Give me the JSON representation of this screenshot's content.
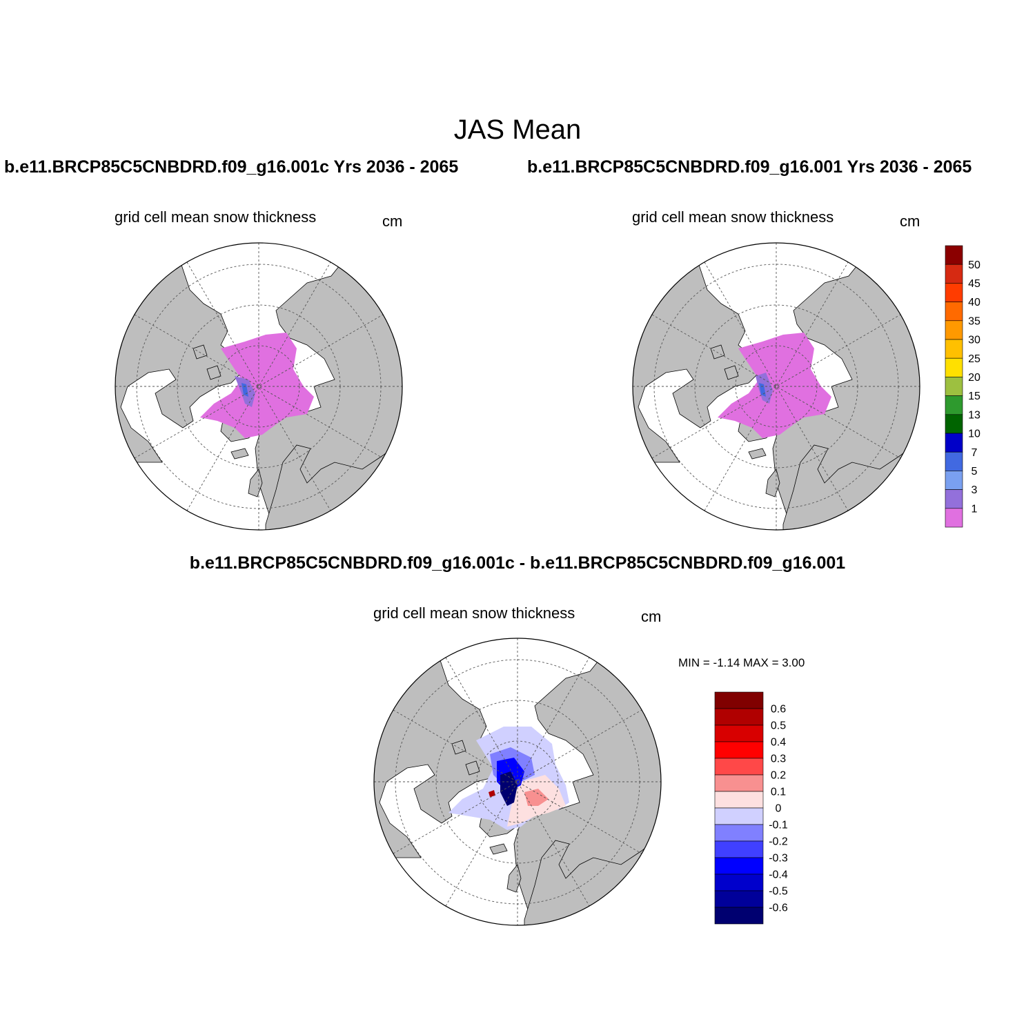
{
  "title": "JAS Mean",
  "panels": [
    {
      "case_title": "b.e11.BRCP85C5CNBDRD.f09_g16.001c  Yrs 2036 - 2065",
      "variable": "grid cell mean snow thickness",
      "units": "cm"
    },
    {
      "case_title": "b.e11.BRCP85C5CNBDRD.f09_g16.001  Yrs 2036 - 2065",
      "variable": "grid cell mean snow thickness",
      "units": "cm"
    },
    {
      "case_title": "b.e11.BRCP85C5CNBDRD.f09_g16.001c - b.e11.BRCP85C5CNBDRD.f09_g16.001",
      "variable": "grid cell mean snow thickness",
      "units": "cm",
      "minmax": "MIN =  -1.14 MAX =   3.00"
    }
  ],
  "colorbar_abs": {
    "labels": [
      "50",
      "45",
      "40",
      "35",
      "30",
      "25",
      "20",
      "15",
      "13",
      "10",
      "7",
      "5",
      "3",
      "1"
    ],
    "colors": [
      "#8b0000",
      "#d62a12",
      "#ff3c00",
      "#ff6a00",
      "#ff9900",
      "#ffc000",
      "#ffe000",
      "#9dc040",
      "#2e9a2e",
      "#006400",
      "#0000c8",
      "#4169e1",
      "#7aa0f0",
      "#9370db",
      "#e070e0"
    ]
  },
  "colorbar_diff": {
    "labels": [
      "0.6",
      "0.5",
      "0.4",
      "0.3",
      "0.2",
      "0.1",
      "0",
      "-0.1",
      "-0.2",
      "-0.3",
      "-0.4",
      "-0.5",
      "-0.6"
    ],
    "colors": [
      "#800000",
      "#b00000",
      "#d80000",
      "#ff0000",
      "#ff4848",
      "#f89090",
      "#fde0e0",
      "#d0d0ff",
      "#8080ff",
      "#4040ff",
      "#0000ff",
      "#0000cc",
      "#00009a",
      "#000070"
    ]
  },
  "colors": {
    "land": "#bebebe",
    "ocean": "#ffffff"
  }
}
